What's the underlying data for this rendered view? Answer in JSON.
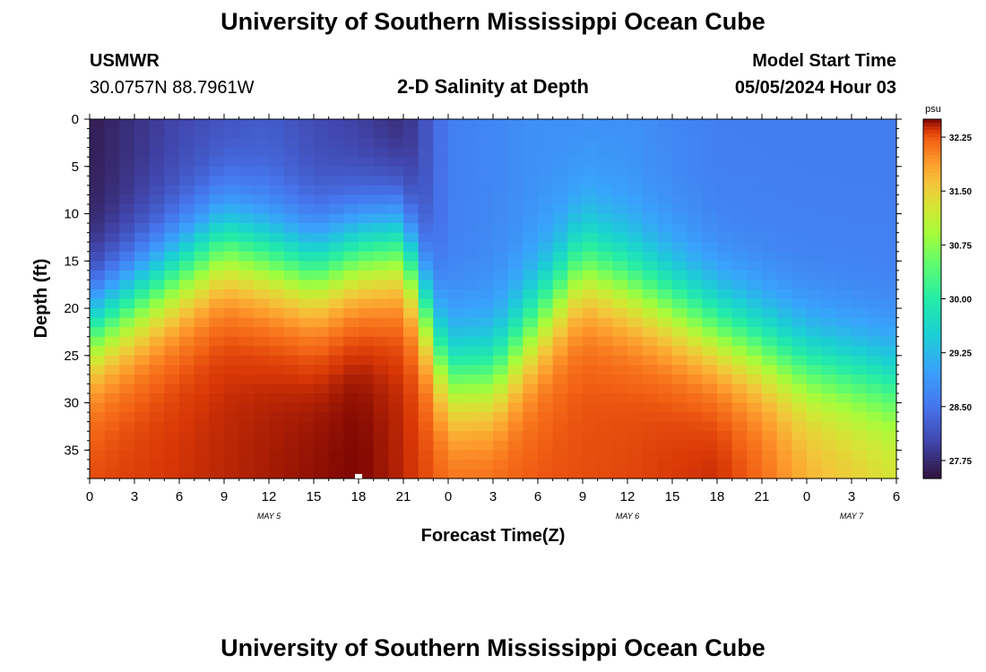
{
  "header": {
    "title": "University of Southern Mississippi Ocean Cube",
    "station_id": "USMWR",
    "station_coords": "30.0757N  88.7961W",
    "plot_title": "2-D Salinity at Depth",
    "model_start_label": "Model Start Time",
    "model_start_value": "05/05/2024 Hour 03"
  },
  "footer": {
    "title": "University of Southern Mississippi Ocean Cube"
  },
  "chart_data": {
    "type": "heatmap",
    "title": "2-D Salinity at Depth",
    "xlabel": "Forecast Time(Z)",
    "ylabel": "Depth (ft)",
    "x_range_hours": [
      0,
      54
    ],
    "x_tick_values": [
      0,
      3,
      6,
      9,
      12,
      15,
      18,
      21,
      24,
      27,
      30,
      33,
      36,
      39,
      42,
      45,
      48,
      51,
      54
    ],
    "x_tick_labels": [
      "0",
      "3",
      "6",
      "9",
      "12",
      "15",
      "18",
      "21",
      "0",
      "3",
      "6",
      "9",
      "12",
      "15",
      "18",
      "21",
      "0",
      "3",
      "6"
    ],
    "day_labels": [
      {
        "label": "MAY 5",
        "hour": 12
      },
      {
        "label": "MAY 6",
        "hour": 36
      },
      {
        "label": "MAY 7",
        "hour": 51
      }
    ],
    "y_range": [
      0,
      38
    ],
    "y_inverted": true,
    "y_ticks": [
      0,
      5,
      10,
      15,
      20,
      25,
      30,
      35
    ],
    "colorbar": {
      "label": "psu",
      "min": 27.5,
      "max": 32.5,
      "ticks": [
        "32.25",
        "31.50",
        "30.75",
        "30.00",
        "29.25",
        "28.50",
        "27.75"
      ],
      "tick_values": [
        32.25,
        31.5,
        30.75,
        30.0,
        29.25,
        28.5,
        27.75
      ]
    },
    "boundary_hours": [
      0,
      6,
      9,
      15,
      18,
      21,
      24,
      27,
      33,
      36,
      42,
      45,
      48,
      54
    ],
    "boundary_depth_ft": [
      22,
      16,
      13,
      16,
      14,
      13,
      27,
      27,
      15,
      17,
      22,
      24,
      26,
      28
    ],
    "surface_hours": [
      0,
      6,
      12,
      18,
      21,
      24,
      30,
      36,
      42,
      48,
      54
    ],
    "surface_salinity": [
      27.6,
      28.0,
      28.2,
      27.9,
      27.7,
      28.6,
      28.8,
      28.8,
      28.6,
      28.6,
      28.6
    ],
    "bottom_hours": [
      0,
      9,
      18,
      21,
      24,
      36,
      42,
      45,
      48,
      54
    ],
    "bottom_salinity": [
      32.3,
      32.4,
      32.5,
      32.4,
      32.2,
      32.3,
      32.4,
      32.2,
      31.8,
      31.4
    ]
  }
}
